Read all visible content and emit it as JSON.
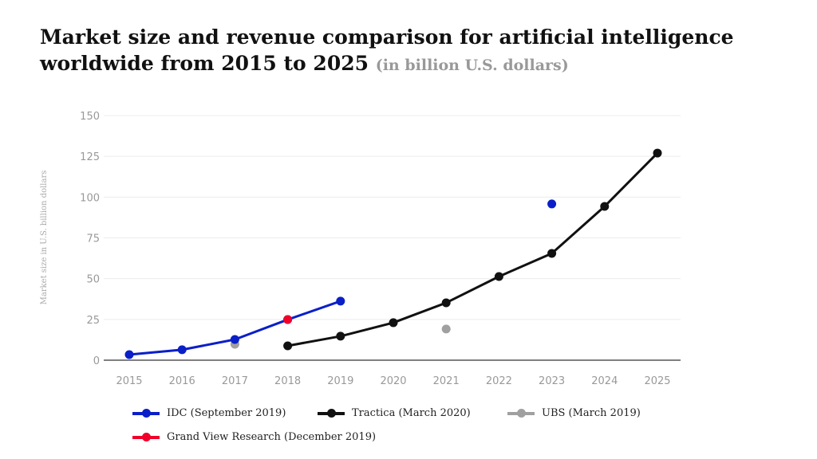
{
  "chart_data": {
    "type": "line",
    "title": "Market size and revenue comparison for artificial intelligence worldwide from 2015 to 2025",
    "subtitle": "(in billion U.S. dollars)",
    "xlabel": "",
    "ylabel": "Market size in U.S. billion dollars",
    "categories": [
      "2015",
      "2016",
      "2017",
      "2018",
      "2019",
      "2020",
      "2021",
      "2022",
      "2023",
      "2024",
      "2025"
    ],
    "yticks": [
      "0",
      "25",
      "50",
      "75",
      "100",
      "125",
      "150"
    ],
    "ylim": [
      0,
      150
    ],
    "grid": true,
    "legend_position": "bottom",
    "series": [
      {
        "name": "IDC (September 2019)",
        "color": "#0a1fc8",
        "points": [
          [
            2015,
            3.4
          ],
          [
            2016,
            6.4
          ],
          [
            2017,
            12.7
          ],
          [
            2018,
            24.9
          ],
          [
            2019,
            36.2
          ]
        ],
        "extra_points": [
          [
            2023,
            95.8
          ]
        ]
      },
      {
        "name": "Tractica (March 2020)",
        "color": "#111111",
        "points": [
          [
            2018,
            8.8
          ],
          [
            2019,
            14.7
          ],
          [
            2020,
            23.0
          ],
          [
            2021,
            35.2
          ],
          [
            2022,
            51.3
          ],
          [
            2023,
            65.5
          ],
          [
            2024,
            94.3
          ],
          [
            2025,
            127.0
          ]
        ]
      },
      {
        "name": "UBS (March 2019)",
        "color": "#a0a0a0",
        "points": [],
        "extra_points": [
          [
            2017,
            9.8
          ],
          [
            2021,
            19.1
          ]
        ]
      },
      {
        "name": "Grand View Research (December 2019)",
        "color": "#f0002a",
        "points": [],
        "extra_points": [
          [
            2018,
            24.9
          ]
        ]
      }
    ]
  }
}
